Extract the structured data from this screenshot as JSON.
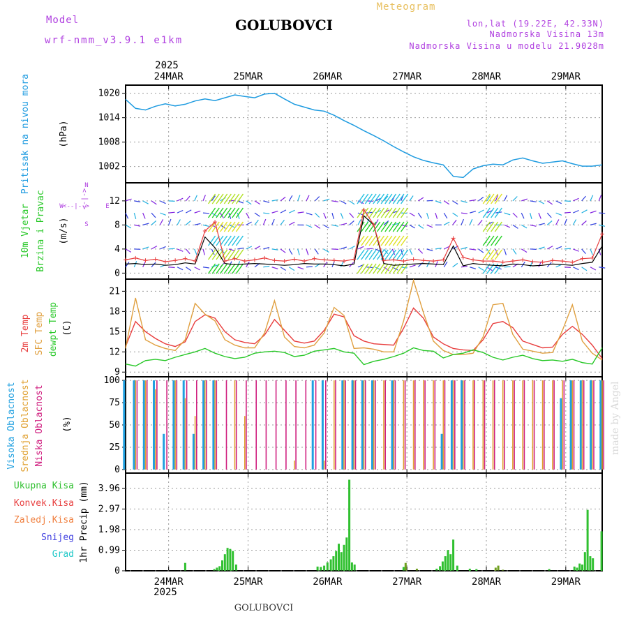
{
  "header": {
    "model_label": "Model",
    "model_value": "wrf-nmm_v3.9.1 e1km",
    "station": "GOLUBOVCI",
    "chart_kind": "Meteogram",
    "lonlat": "lon,lat (19.22E, 42.33N)",
    "elevation": "Nadmorska Visina 13m",
    "model_elevation": "Nadmorska Visina u modelu 21.9028m",
    "year": "2025",
    "footer_station": "GOLUBOVCI",
    "watermark": "made by Angel"
  },
  "colors": {
    "pressure": "#1e9be0",
    "temp2m": "#e83c3c",
    "sfc": "#e0a040",
    "dewpt": "#28c828",
    "high_cloud": "#20a0e0",
    "mid_cloud": "#e0a030",
    "low_cloud": "#d02080",
    "total_precip": "#30c030",
    "conv_precip": "#e84040",
    "frozen": "#f08040",
    "snow": "#4040e0",
    "hail": "#20c8c8"
  },
  "days": [
    "24MAR",
    "25MAR",
    "26MAR",
    "27MAR",
    "28MAR",
    "29MAR"
  ],
  "chart_data": [
    {
      "type": "line",
      "panel": "pressure",
      "ylabel_lines": [
        "Pritisak na nivou mora",
        "(hPa)"
      ],
      "yticks": [
        "1002",
        "1008",
        "1014",
        "1020"
      ],
      "ylim": [
        998,
        1022
      ],
      "x_hours": [
        0,
        3,
        6,
        9,
        12,
        15,
        18,
        21,
        24,
        27,
        30,
        33,
        36,
        39,
        42,
        45,
        48,
        51,
        54,
        57,
        60,
        63,
        66,
        69,
        72,
        75,
        78,
        81,
        84,
        87,
        90,
        93,
        96,
        99,
        102,
        105,
        108,
        111,
        114,
        117,
        120,
        123,
        126,
        129,
        132,
        135,
        138,
        141,
        144
      ],
      "values": [
        1018.5,
        1016.3,
        1015.9,
        1016.8,
        1017.4,
        1016.9,
        1017.3,
        1018.1,
        1018.6,
        1018.2,
        1018.9,
        1019.6,
        1019.2,
        1018.9,
        1019.8,
        1020.0,
        1018.6,
        1017.3,
        1016.6,
        1015.9,
        1015.6,
        1014.6,
        1013.3,
        1012.1,
        1010.8,
        1009.6,
        1008.3,
        1006.9,
        1005.6,
        1004.4,
        1003.5,
        1002.9,
        1002.4,
        999.6,
        999.3,
        1001.4,
        1002.2,
        1002.6,
        1002.4,
        1003.6,
        1004.1,
        1003.4,
        1002.8,
        1003.1,
        1003.4,
        1002.7,
        1002.1,
        1002.1,
        1002.4
      ]
    },
    {
      "type": "line",
      "panel": "wind",
      "ylabel_lines": [
        "10m Vjetar",
        "Brzina i Pravac",
        "(m/s)"
      ],
      "compass": [
        "N",
        "S",
        "E",
        "W"
      ],
      "yticks": [
        "0",
        "4",
        "8",
        "12"
      ],
      "ylim": [
        -1,
        15
      ],
      "x_hours": [
        0,
        3,
        6,
        9,
        12,
        15,
        18,
        21,
        24,
        27,
        30,
        33,
        36,
        39,
        42,
        45,
        48,
        51,
        54,
        57,
        60,
        63,
        66,
        69,
        72,
        75,
        78,
        81,
        84,
        87,
        90,
        93,
        96,
        99,
        102,
        105,
        108,
        111,
        114,
        117,
        120,
        123,
        126,
        129,
        132,
        135,
        138,
        141,
        144
      ],
      "series": [
        {
          "values": [
            1.5,
            1.6,
            1.4,
            1.5,
            1.3,
            1.4,
            1.7,
            1.5,
            6.0,
            4.2,
            1.6,
            1.4,
            1.5,
            1.6,
            1.5,
            1.4,
            1.3,
            1.4,
            1.6,
            1.5,
            1.5,
            1.4,
            1.2,
            1.5,
            9.5,
            8.0,
            1.6,
            1.3,
            1.4,
            1.5,
            1.6,
            1.5,
            1.4,
            4.5,
            1.2,
            1.6,
            1.4,
            1.3,
            1.2,
            1.5,
            1.4,
            1.2,
            1.3,
            1.5,
            1.4,
            1.3,
            1.6,
            1.8,
            4.5
          ],
          "color": "#000000"
        },
        {
          "values": [
            2.2,
            2.5,
            2.1,
            2.3,
            1.9,
            2.1,
            2.4,
            2.0,
            7.0,
            8.5,
            2.0,
            2.4,
            2.0,
            2.2,
            2.5,
            2.1,
            2.0,
            2.3,
            2.0,
            2.4,
            2.2,
            2.1,
            2.0,
            2.3,
            10.5,
            8.0,
            2.1,
            2.2,
            2.0,
            2.3,
            2.1,
            2.0,
            2.2,
            5.8,
            2.6,
            2.2,
            2.0,
            2.0,
            1.8,
            2.0,
            2.2,
            1.9,
            1.8,
            2.1,
            2.0,
            1.8,
            2.4,
            2.5,
            6.5
          ],
          "color": "#e83c3c"
        }
      ],
      "annotation": "wind direction barbs"
    },
    {
      "type": "line",
      "panel": "temperature",
      "ylabel_lines": [
        "2m Temp",
        "SFC Temp",
        "dewpt Temp",
        "(C)"
      ],
      "yticks": [
        "9",
        "12",
        "15",
        "18",
        "21"
      ],
      "ylim": [
        8.3,
        22.8
      ],
      "x_hours": [
        0,
        3,
        6,
        9,
        12,
        15,
        18,
        21,
        24,
        27,
        30,
        33,
        36,
        39,
        42,
        45,
        48,
        51,
        54,
        57,
        60,
        63,
        66,
        69,
        72,
        75,
        78,
        81,
        84,
        87,
        90,
        93,
        96,
        99,
        102,
        105,
        108,
        111,
        114,
        117,
        120,
        123,
        126,
        129,
        132,
        135,
        138,
        141,
        144
      ],
      "series": [
        {
          "name": "2m Temp",
          "values": [
            12.8,
            16.5,
            15.0,
            14.0,
            13.2,
            12.8,
            13.5,
            16.5,
            17.5,
            17.0,
            15.0,
            13.8,
            13.4,
            13.2,
            14.5,
            16.8,
            15.2,
            13.6,
            13.3,
            13.6,
            15.2,
            17.6,
            17.2,
            14.4,
            13.6,
            13.2,
            13.1,
            13.0,
            15.5,
            18.5,
            17.0,
            14.2,
            13.2,
            12.5,
            12.3,
            12.2,
            13.8,
            16.2,
            16.5,
            15.6,
            13.6,
            13.1,
            12.6,
            12.7,
            14.6,
            15.8,
            14.6,
            13.0,
            11.0
          ],
          "color": "#e83c3c"
        },
        {
          "name": "SFC Temp",
          "values": [
            12.5,
            20.0,
            13.8,
            13.0,
            12.5,
            12.2,
            13.8,
            19.2,
            17.6,
            16.6,
            13.8,
            13.0,
            12.6,
            12.6,
            14.8,
            19.6,
            14.2,
            12.8,
            12.6,
            13.0,
            14.8,
            18.6,
            17.4,
            12.5,
            12.6,
            12.4,
            12.0,
            12.0,
            16.6,
            22.6,
            17.8,
            13.6,
            12.2,
            11.6,
            11.6,
            11.8,
            14.2,
            19.0,
            19.2,
            14.6,
            12.4,
            12.1,
            11.8,
            11.9,
            15.2,
            19.0,
            13.6,
            11.8,
            10.8
          ],
          "color": "#e0a040"
        },
        {
          "name": "dewpt Temp",
          "values": [
            10.2,
            9.9,
            10.7,
            10.9,
            10.7,
            11.2,
            11.6,
            12.0,
            12.5,
            11.8,
            11.3,
            11.0,
            11.2,
            11.8,
            12.0,
            12.1,
            11.9,
            11.3,
            11.5,
            12.1,
            12.3,
            12.5,
            12.0,
            11.8,
            10.1,
            10.6,
            10.9,
            11.3,
            11.8,
            12.6,
            12.2,
            12.1,
            11.1,
            11.6,
            11.8,
            12.3,
            11.9,
            11.2,
            10.8,
            11.2,
            11.5,
            11.0,
            10.7,
            10.8,
            10.6,
            10.9,
            10.4,
            10.2,
            12.6
          ],
          "color": "#28c828"
        }
      ]
    },
    {
      "type": "bar",
      "panel": "cloud",
      "ylabel_lines": [
        "Visoka Oblacnost",
        "Srednja Oblacnost",
        "Niska Oblacnost",
        "(%)"
      ],
      "yticks": [
        "0",
        "25",
        "50",
        "75",
        "100"
      ],
      "ylim": [
        -4,
        104
      ],
      "x_hours": [
        0,
        3,
        6,
        9,
        12,
        15,
        18,
        21,
        24,
        27,
        30,
        33,
        36,
        39,
        42,
        45,
        48,
        51,
        54,
        57,
        60,
        63,
        66,
        69,
        72,
        75,
        78,
        81,
        84,
        87,
        90,
        93,
        96,
        99,
        102,
        105,
        108,
        111,
        114,
        117,
        120,
        123,
        126,
        129,
        132,
        135,
        138,
        141,
        144
      ],
      "series": [
        {
          "name": "Visoka Oblacnost",
          "values": [
            100,
            100,
            100,
            100,
            40,
            100,
            100,
            40,
            100,
            100,
            0,
            0,
            0,
            0,
            0,
            0,
            0,
            0,
            0,
            100,
            100,
            0,
            100,
            100,
            100,
            100,
            0,
            100,
            0,
            0,
            0,
            0,
            40,
            100,
            100,
            0,
            0,
            0,
            0,
            0,
            0,
            0,
            0,
            0,
            80,
            100,
            100,
            100,
            100
          ],
          "color": "#20a0e0"
        },
        {
          "name": "Srednja Oblacnost",
          "values": [
            0,
            100,
            100,
            90,
            0,
            100,
            80,
            60,
            100,
            100,
            0,
            100,
            60,
            0,
            0,
            0,
            0,
            10,
            0,
            0,
            10,
            100,
            100,
            100,
            100,
            100,
            100,
            100,
            100,
            100,
            100,
            100,
            100,
            100,
            100,
            100,
            100,
            100,
            100,
            100,
            100,
            100,
            100,
            100,
            100,
            100,
            100,
            100,
            100
          ],
          "color": "#e0a030"
        },
        {
          "name": "Niska Oblacnost",
          "values": [
            0,
            100,
            100,
            100,
            100,
            100,
            100,
            100,
            100,
            100,
            100,
            100,
            100,
            100,
            100,
            100,
            100,
            100,
            100,
            100,
            100,
            100,
            100,
            100,
            100,
            100,
            100,
            100,
            100,
            100,
            100,
            100,
            100,
            100,
            100,
            100,
            100,
            100,
            100,
            100,
            100,
            100,
            100,
            100,
            100,
            100,
            100,
            100,
            100
          ],
          "color": "#d02080"
        }
      ]
    },
    {
      "type": "bar",
      "panel": "precip",
      "ylabel_lines": [
        "1hr Precip (mm)"
      ],
      "legend": [
        "Ukupna Kisa",
        "Konvek.Kisa",
        "Zaledj.Kisa",
        "Snijeg",
        "Grad"
      ],
      "yticks": [
        "0",
        "0.99",
        "1.98",
        "2.97",
        "3.96"
      ],
      "ylim": [
        0,
        4.7
      ],
      "x_hours": [
        0,
        3,
        6,
        9,
        12,
        15,
        18,
        21,
        24,
        27,
        30,
        33,
        36,
        39,
        42,
        45,
        48,
        51,
        54,
        57,
        60,
        63,
        66,
        69,
        72,
        75,
        78,
        81,
        84,
        87,
        90,
        93,
        96,
        99,
        102,
        105,
        108,
        111,
        114,
        117,
        120,
        123,
        126,
        129,
        132,
        135,
        138,
        141,
        144
      ],
      "series": [
        {
          "name": "Ukupna Kisa",
          "values": [
            0,
            0,
            0,
            0,
            0,
            0,
            0,
            0,
            0,
            0,
            0,
            0,
            0,
            0,
            0,
            0,
            0,
            0,
            0,
            0,
            0,
            0,
            0,
            0,
            0,
            0,
            0,
            0,
            0,
            0,
            0,
            0,
            0,
            0,
            0,
            0,
            0,
            0,
            0,
            0,
            0,
            0,
            0,
            0,
            0,
            0,
            0,
            0,
            0
          ],
          "color": "#30c030"
        }
      ],
      "bars": [
        {
          "h": 18.0,
          "v": 0.38
        },
        {
          "h": 26.8,
          "v": 0.08
        },
        {
          "h": 27.6,
          "v": 0.15
        },
        {
          "h": 28.4,
          "v": 0.22
        },
        {
          "h": 29.2,
          "v": 0.5
        },
        {
          "h": 30.0,
          "v": 0.8
        },
        {
          "h": 30.8,
          "v": 1.1
        },
        {
          "h": 31.6,
          "v": 1.05
        },
        {
          "h": 32.4,
          "v": 0.95
        },
        {
          "h": 33.4,
          "v": 0.3
        },
        {
          "h": 58.0,
          "v": 0.2
        },
        {
          "h": 59.0,
          "v": 0.18
        },
        {
          "h": 60.0,
          "v": 0.25
        },
        {
          "h": 61.0,
          "v": 0.4
        },
        {
          "h": 62.0,
          "v": 0.55
        },
        {
          "h": 62.8,
          "v": 0.7
        },
        {
          "h": 63.6,
          "v": 0.95
        },
        {
          "h": 64.4,
          "v": 1.3
        },
        {
          "h": 65.2,
          "v": 0.9
        },
        {
          "h": 66.0,
          "v": 1.25
        },
        {
          "h": 66.8,
          "v": 1.6
        },
        {
          "h": 67.6,
          "v": 4.38
        },
        {
          "h": 68.4,
          "v": 0.4
        },
        {
          "h": 69.2,
          "v": 0.3
        },
        {
          "h": 84.0,
          "v": 0.18
        },
        {
          "h": 84.6,
          "v": 0.38
        },
        {
          "h": 88.0,
          "v": 0.1
        },
        {
          "h": 94.0,
          "v": 0.1
        },
        {
          "h": 95.0,
          "v": 0.22
        },
        {
          "h": 95.8,
          "v": 0.45
        },
        {
          "h": 96.6,
          "v": 0.7
        },
        {
          "h": 97.4,
          "v": 1.0
        },
        {
          "h": 98.2,
          "v": 0.8
        },
        {
          "h": 99.0,
          "v": 1.5
        },
        {
          "h": 100.2,
          "v": 0.25
        },
        {
          "h": 104.0,
          "v": 0.1
        },
        {
          "h": 106.0,
          "v": 0.08
        },
        {
          "h": 111.8,
          "v": 0.15
        },
        {
          "h": 112.6,
          "v": 0.25
        },
        {
          "h": 114.0,
          "v": 0.05
        },
        {
          "h": 128.0,
          "v": 0.08
        },
        {
          "h": 135.6,
          "v": 0.2
        },
        {
          "h": 136.4,
          "v": 0.15
        },
        {
          "h": 137.2,
          "v": 0.35
        },
        {
          "h": 138.0,
          "v": 0.3
        },
        {
          "h": 138.8,
          "v": 0.9
        },
        {
          "h": 139.6,
          "v": 2.93
        },
        {
          "h": 140.4,
          "v": 0.7
        },
        {
          "h": 141.2,
          "v": 0.6
        },
        {
          "h": 143.8,
          "v": 1.9
        }
      ]
    }
  ]
}
